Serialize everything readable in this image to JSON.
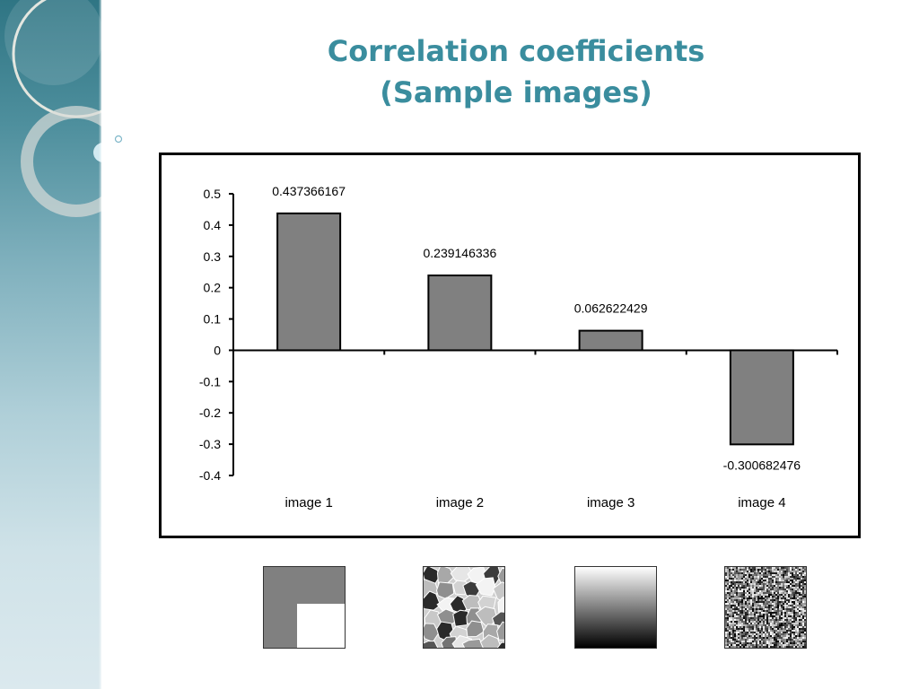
{
  "slide": {
    "title_line1": "Correlation coefficients",
    "title_line2": "(Sample images)"
  },
  "colors": {
    "title": "#3a8d9e",
    "bar_fill": "#808080",
    "bar_stroke": "#000000",
    "sidebar_top": "#2f7584",
    "sidebar_bottom": "#dbe9ee"
  },
  "chart_data": {
    "type": "bar",
    "categories": [
      "image 1",
      "image 2",
      "image 3",
      "image 4"
    ],
    "values": [
      0.437366167,
      0.239146336,
      0.062622429,
      -0.300682476
    ],
    "data_labels": [
      "0.437366167",
      "0.239146336",
      "0.062622429",
      "-0.300682476"
    ],
    "title": "",
    "xlabel": "",
    "ylabel": "",
    "ylim": [
      -0.4,
      0.5
    ],
    "yticks": [
      0.5,
      0.4,
      0.3,
      0.2,
      0.1,
      0,
      -0.1,
      -0.2,
      -0.3,
      -0.4
    ],
    "ytick_labels": [
      "0.5",
      "0.4",
      "0.3",
      "0.2",
      "0.1",
      "0",
      "-0.1",
      "-0.2",
      "-0.3",
      "-0.4"
    ],
    "grid": false,
    "legend": "none"
  },
  "thumbnails": [
    {
      "name": "image 1 sample",
      "kind": "gray-square-with-white-corner"
    },
    {
      "name": "image 2 sample",
      "kind": "gray-patches"
    },
    {
      "name": "image 3 sample",
      "kind": "vertical-gradient"
    },
    {
      "name": "image 4 sample",
      "kind": "noise"
    }
  ]
}
